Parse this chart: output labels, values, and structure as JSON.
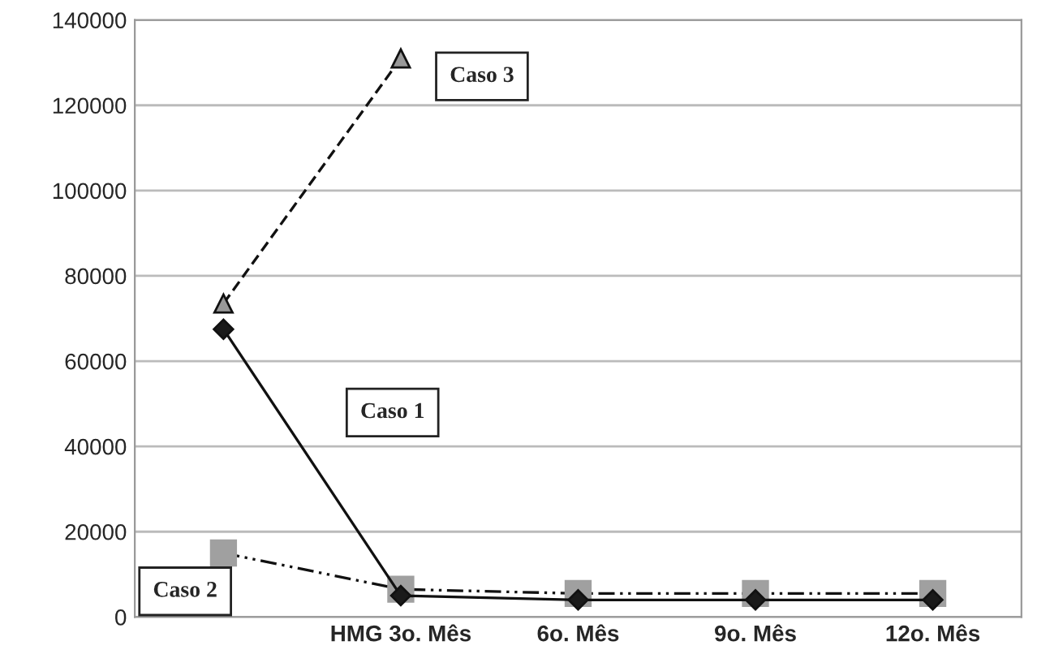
{
  "chart_data": {
    "type": "line",
    "categories": [
      null,
      "HMG 3o. Mês",
      "6o. Mês",
      "9o. Mês",
      "12o. Mês"
    ],
    "series": [
      {
        "name": "Caso 1",
        "color": "#1a1a1a",
        "marker": "diamond",
        "line_style": "solid",
        "values": [
          67500,
          5000,
          4000,
          4000,
          4000
        ]
      },
      {
        "name": "Caso 2",
        "color": "#a0a0a0",
        "marker": "square",
        "line_style": "dashdot",
        "values": [
          15000,
          6500,
          5500,
          5500,
          5500
        ]
      },
      {
        "name": "Caso 3",
        "color": "#999999",
        "marker": "triangle",
        "line_style": "dashed",
        "values": [
          73500,
          131000,
          null,
          null,
          null
        ]
      }
    ],
    "ylim": [
      0,
      140000
    ],
    "yticks": [
      0,
      20000,
      40000,
      60000,
      80000,
      100000,
      120000,
      140000
    ],
    "grid": "y",
    "legend": false
  }
}
